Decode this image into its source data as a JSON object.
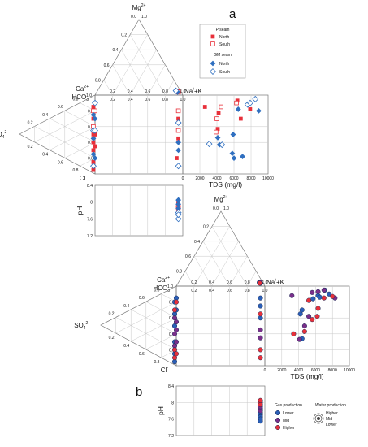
{
  "chart_data": [
    {
      "panel_label": "a",
      "type": "scatter",
      "kind": "durov",
      "ions": {
        "mg": "Mg2+",
        "ca": "Ca2+",
        "nak": "Na+ +K",
        "hco3": "HCO3",
        "so4": "SO42-",
        "cl": "Cl-"
      },
      "triangle_ticks": [
        "0.2",
        "0.4",
        "0.6",
        "0.8",
        "1.0"
      ],
      "triangle_zero": "0.0",
      "xlabel": "TDS (mg/l)",
      "ylabel": "pH",
      "tds_ticks": [
        "0",
        "2000",
        "4000",
        "6000",
        "8000",
        "10000"
      ],
      "ph_ticks": [
        "8.4",
        "8",
        "7.6",
        "7.2"
      ],
      "xlim": [
        0,
        10000
      ],
      "ylim": [
        7.2,
        8.4
      ],
      "legend": {
        "p_title": "P seam",
        "gm_title": "GM seam",
        "north": "North",
        "south": "South"
      },
      "colors": {
        "p_north": "#e8303a",
        "p_south": "#e8303a",
        "gm_north": "#2f6fc0",
        "gm_south": "#2f6fc0"
      },
      "series": [
        {
          "name": "P seam North",
          "marker": "square-filled",
          "cation": [
            [
              0.02,
              0.05
            ],
            [
              0.02,
              0.04
            ],
            [
              0.03,
              0.06
            ]
          ],
          "anion": [
            [
              0.7,
              0.0
            ],
            [
              0.3,
              0.0
            ],
            [
              0.5,
              0.0
            ],
            [
              0.15,
              0.0
            ],
            [
              0.85,
              0.0
            ],
            [
              0.6,
              0.0
            ],
            [
              0.95,
              0.0
            ]
          ],
          "diamond": [
            [
              0.95,
              0.3
            ],
            [
              0.95,
              0.55
            ],
            [
              0.93,
              0.8
            ],
            [
              0.0,
              0.5
            ],
            [
              0.0,
              0.65
            ]
          ],
          "tds": [
            [
              2600,
              0.15
            ],
            [
              4100,
              0.43
            ],
            [
              6400,
              0.07
            ],
            [
              7900,
              0.18
            ],
            [
              6800,
              0.3
            ],
            [
              4200,
              0.23
            ]
          ],
          "ph": [
            7.9,
            7.85,
            7.95,
            8.0,
            7.8
          ]
        },
        {
          "name": "P seam South",
          "marker": "square-open",
          "cation": [
            [
              0.02,
              0.04
            ]
          ],
          "anion": [
            [
              0.4,
              0.0
            ],
            [
              0.2,
              0.0
            ]
          ],
          "diamond": [
            [
              0.95,
              0.2
            ],
            [
              0.95,
              0.45
            ],
            [
              0.0,
              0.2
            ]
          ],
          "tds": [
            [
              4000,
              0.3
            ],
            [
              3900,
              0.47
            ],
            [
              4500,
              0.15
            ],
            [
              6300,
              0.1
            ]
          ],
          "ph": [
            7.9,
            7.85
          ]
        },
        {
          "name": "GM seam North",
          "marker": "diamond-filled",
          "cation": [
            [
              0.03,
              0.04
            ],
            [
              0.04,
              0.05
            ]
          ],
          "anion": [
            [
              0.55,
              0.0
            ],
            [
              0.25,
              0.0
            ],
            [
              0.75,
              0.0
            ]
          ],
          "diamond": [
            [
              0.95,
              0.6
            ],
            [
              0.95,
              0.7
            ],
            [
              0.0,
              0.8
            ],
            [
              0.0,
              0.3
            ]
          ],
          "tds": [
            [
              6000,
              0.8
            ],
            [
              7000,
              0.78
            ],
            [
              5800,
              0.74
            ],
            [
              4300,
              0.63
            ],
            [
              4100,
              0.54
            ],
            [
              5900,
              0.5
            ],
            [
              6500,
              0.18
            ],
            [
              7700,
              0.12
            ],
            [
              8900,
              0.2
            ]
          ],
          "ph": [
            8.05,
            7.95,
            7.75,
            7.85
          ]
        },
        {
          "name": "GM seam South",
          "marker": "diamond-open",
          "cation": [
            [
              0.04,
              0.06
            ]
          ],
          "anion": [
            [
              0.45,
              0.0
            ],
            [
              0.9,
              0.0
            ]
          ],
          "diamond": [
            [
              0.95,
              0.35
            ],
            [
              0.95,
              0.9
            ],
            [
              0.0,
              0.1
            ],
            [
              0.0,
              0.45
            ]
          ],
          "tds": [
            [
              3100,
              0.62
            ],
            [
              4600,
              0.63
            ],
            [
              7600,
              0.12
            ],
            [
              7900,
              0.1
            ],
            [
              8500,
              0.05
            ]
          ],
          "ph": [
            7.75,
            7.6,
            7.7
          ]
        }
      ]
    },
    {
      "panel_label": "b",
      "type": "scatter",
      "kind": "durov",
      "ions": {
        "mg": "Mg2+",
        "ca": "Ca2+",
        "nak": "Na+ +K",
        "hco3": "HCO3",
        "so4": "SO42-",
        "cl": "Cl-"
      },
      "triangle_ticks": [
        "0.2",
        "0.4",
        "0.6",
        "0.8",
        "1.0"
      ],
      "triangle_zero": "0.0",
      "xlabel": "TDS (mg/l)",
      "ylabel": "pH",
      "tds_ticks": [
        "0",
        "2000",
        "4000",
        "6000",
        "8000",
        "10000"
      ],
      "ph_ticks": [
        "8.4",
        "8",
        "7.6",
        "7.2"
      ],
      "xlim": [
        0,
        10000
      ],
      "ylim": [
        7.2,
        8.4
      ],
      "legend": {
        "gas_title": "Gas production",
        "lower": "Lower",
        "mid": "Mid",
        "higher": "Higher",
        "water_title": "Water production",
        "w_higher": "Higher",
        "w_mid": "Mid",
        "w_lower": "Lower"
      },
      "colors": {
        "lower": "#2a5fb8",
        "mid": "#7a2f8a",
        "higher": "#e8303a"
      },
      "series": [
        {
          "name": "Lower",
          "marker": "circle",
          "cation": [
            [
              0.02,
              0.04
            ],
            [
              0.03,
              0.05
            ]
          ],
          "anion": [
            [
              0.5,
              0.0
            ],
            [
              0.7,
              0.0
            ],
            [
              0.2,
              0.0
            ],
            [
              0.35,
              0.0
            ],
            [
              0.85,
              0.0
            ],
            [
              0.95,
              0.0
            ]
          ],
          "diamond": [
            [
              0.95,
              0.15
            ],
            [
              0.95,
              0.25
            ],
            [
              0.95,
              0.4
            ],
            [
              0.0,
              0.15
            ],
            [
              0.0,
              0.3
            ]
          ],
          "tds": [
            [
              4200,
              0.35
            ],
            [
              4400,
              0.3
            ],
            [
              5700,
              0.16
            ],
            [
              6300,
              0.12
            ],
            [
              6500,
              0.14
            ],
            [
              7100,
              0.05
            ],
            [
              7600,
              0.1
            ],
            [
              4400,
              0.66
            ]
          ],
          "ph": [
            7.7,
            7.65,
            7.75,
            7.6,
            7.55
          ]
        },
        {
          "name": "Mid",
          "marker": "circle",
          "cation": [
            [
              0.02,
              0.05
            ]
          ],
          "anion": [
            [
              0.4,
              0.0
            ],
            [
              0.6,
              0.0
            ],
            [
              0.75,
              0.0
            ]
          ],
          "diamond": [
            [
              0.95,
              0.55
            ],
            [
              0.95,
              0.65
            ],
            [
              0.0,
              0.45
            ],
            [
              0.0,
              0.55
            ],
            [
              0.0,
              0.7
            ]
          ],
          "tds": [
            [
              4100,
              0.67
            ],
            [
              3200,
              0.12
            ],
            [
              4700,
              0.5
            ],
            [
              5200,
              0.38
            ],
            [
              5600,
              0.08
            ],
            [
              6300,
              0.07
            ],
            [
              7000,
              0.05
            ],
            [
              8300,
              0.15
            ]
          ],
          "ph": [
            7.85,
            7.8,
            7.9
          ]
        },
        {
          "name": "Higher",
          "marker": "circle",
          "cation": [
            [
              0.03,
              0.04
            ]
          ],
          "anion": [
            [
              0.3,
              0.0
            ],
            [
              0.8,
              0.0
            ],
            [
              0.9,
              0.0
            ]
          ],
          "diamond": [
            [
              0.95,
              0.35
            ],
            [
              0.95,
              0.8
            ],
            [
              0.95,
              0.9
            ],
            [
              0.0,
              0.2
            ],
            [
              0.0,
              0.85
            ]
          ],
          "tds": [
            [
              3400,
              0.6
            ],
            [
              4700,
              0.57
            ],
            [
              5600,
              0.42
            ],
            [
              6200,
              0.38
            ],
            [
              6300,
              0.28
            ],
            [
              7000,
              0.15
            ],
            [
              8000,
              0.13
            ],
            [
              5200,
              0.18
            ]
          ],
          "ph": [
            8.0,
            7.95,
            8.05
          ]
        }
      ]
    }
  ]
}
